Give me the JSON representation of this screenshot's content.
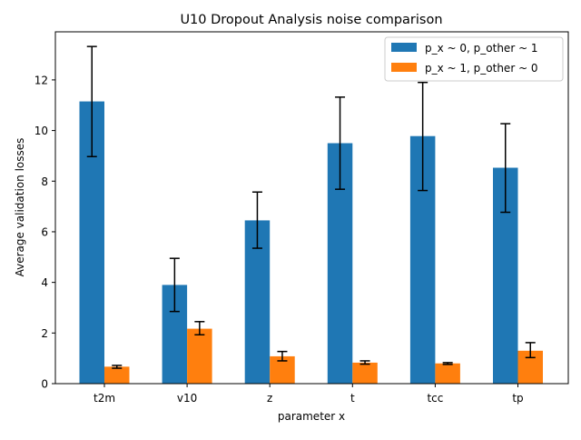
{
  "chart_data": {
    "type": "bar",
    "title": "U10 Dropout Analysis noise comparison",
    "xlabel": "parameter x",
    "ylabel": "Average validation losses",
    "categories": [
      "t2m",
      "v10",
      "z",
      "t",
      "tcc",
      "tp"
    ],
    "ylim": [
      0,
      13.9
    ],
    "yticks": [
      0,
      2,
      4,
      6,
      8,
      10,
      12
    ],
    "grid": false,
    "legend_position": "top-right",
    "series": [
      {
        "name": "p_x ~ 0, p_other ~ 1",
        "color": "#1f77b4",
        "values": [
          11.15,
          3.9,
          6.45,
          9.5,
          9.78,
          8.53
        ],
        "error_low": [
          8.97,
          2.85,
          5.35,
          7.68,
          7.63,
          6.77
        ],
        "error_high": [
          13.32,
          4.95,
          7.57,
          11.32,
          11.9,
          10.27
        ]
      },
      {
        "name": "p_x ~ 1, p_other ~ 0",
        "color": "#ff7f0e",
        "values": [
          0.67,
          2.17,
          1.08,
          0.83,
          0.8,
          1.3
        ],
        "error_low": [
          0.61,
          1.93,
          0.9,
          0.77,
          0.76,
          1.03
        ],
        "error_high": [
          0.72,
          2.45,
          1.27,
          0.9,
          0.83,
          1.62
        ]
      }
    ]
  }
}
